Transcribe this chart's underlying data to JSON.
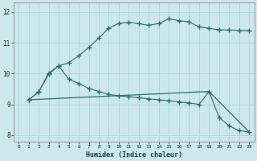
{
  "title": "",
  "xlabel": "Humidex (Indice chaleur)",
  "background_color": "#cce8ee",
  "grid_color": "#afd4db",
  "line_color": "#2a7068",
  "xlim": [
    -0.5,
    23.5
  ],
  "ylim": [
    7.8,
    12.3
  ],
  "yticks": [
    8,
    9,
    10,
    11,
    12
  ],
  "xticks": [
    0,
    1,
    2,
    3,
    4,
    5,
    6,
    7,
    8,
    9,
    10,
    11,
    12,
    13,
    14,
    15,
    16,
    17,
    18,
    19,
    20,
    21,
    22,
    23
  ],
  "line1_x": [
    1,
    2,
    3,
    4,
    5,
    6,
    7,
    8,
    9,
    10,
    11,
    12,
    13,
    14,
    15,
    16,
    17,
    18,
    19,
    20,
    21,
    22,
    23
  ],
  "line1_y": [
    9.15,
    9.4,
    9.98,
    10.25,
    10.35,
    10.58,
    10.85,
    11.15,
    11.48,
    11.63,
    11.67,
    11.62,
    11.57,
    11.63,
    11.78,
    11.72,
    11.68,
    11.52,
    11.47,
    11.42,
    11.42,
    11.4,
    11.4
  ],
  "line2_x": [
    1,
    2,
    3,
    4,
    5,
    6,
    7,
    8,
    9,
    10,
    11,
    12,
    13,
    14,
    15,
    16,
    17,
    18,
    19,
    20,
    21,
    22,
    23
  ],
  "line2_y": [
    9.15,
    9.4,
    10.02,
    10.25,
    9.82,
    9.68,
    9.52,
    9.42,
    9.32,
    9.28,
    9.25,
    9.22,
    9.18,
    9.15,
    9.12,
    9.08,
    9.05,
    9.0,
    9.42,
    8.58,
    8.3,
    8.15,
    8.1
  ],
  "line3_x": [
    1,
    19,
    23
  ],
  "line3_y": [
    9.15,
    9.42,
    8.1
  ]
}
